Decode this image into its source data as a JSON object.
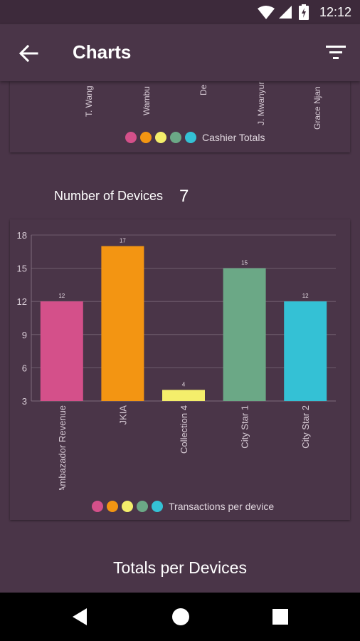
{
  "status": {
    "time": "12:12"
  },
  "appbar": {
    "title": "Charts"
  },
  "cashier_chart": {
    "labels": [
      "T. Wang",
      "Wambu",
      "De",
      "J. Mwanyur",
      "Grace Njan"
    ],
    "legend": "Cashier Totals",
    "colors": [
      "#d4508a",
      "#f39512",
      "#f4ee6b",
      "#6ba886",
      "#34c1d5"
    ]
  },
  "devices": {
    "title": "Number of Devices",
    "count": "7"
  },
  "totals_title": "Totals per Devices",
  "chart_data": {
    "type": "bar",
    "categories": [
      "Ambazador Revenue",
      "JKIA",
      "Collection 4",
      "City Star 1",
      "City Star 2"
    ],
    "values": [
      12,
      17,
      4,
      15,
      12
    ],
    "data_labels": [
      "12",
      "17",
      "4",
      "15",
      "12"
    ],
    "colors": [
      "#d4508a",
      "#f39512",
      "#f4ee6b",
      "#6ba886",
      "#34c1d5"
    ],
    "ylim": [
      3,
      18
    ],
    "yticks": [
      "3",
      "6",
      "9",
      "12",
      "15",
      "18"
    ],
    "legend": "Transactions per device",
    "legend_position": "bottom-center",
    "grid": true
  }
}
